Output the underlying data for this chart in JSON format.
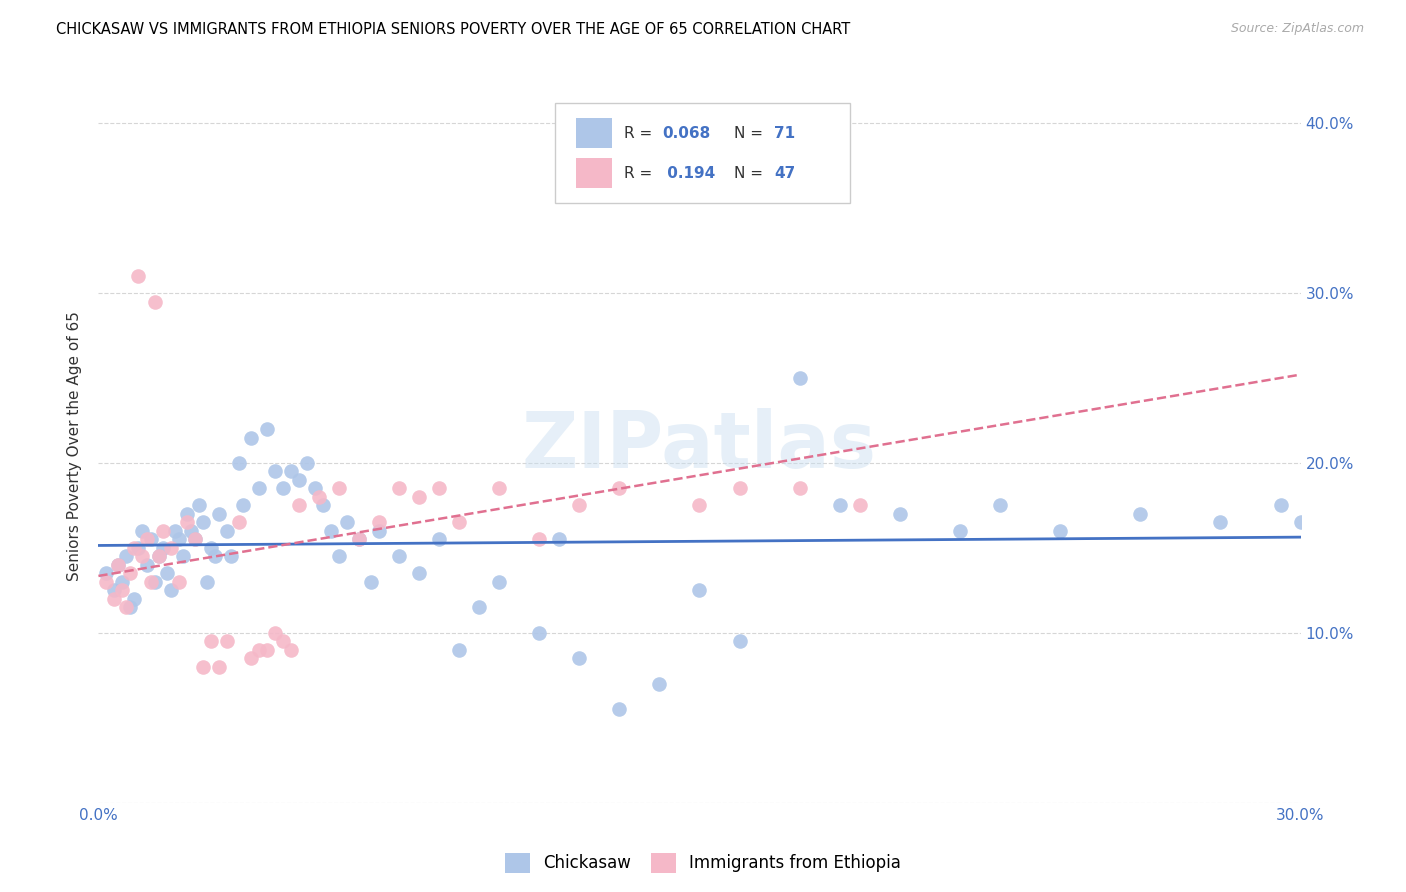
{
  "title": "CHICKASAW VS IMMIGRANTS FROM ETHIOPIA SENIORS POVERTY OVER THE AGE OF 65 CORRELATION CHART",
  "source": "Source: ZipAtlas.com",
  "ylabel": "Seniors Poverty Over the Age of 65",
  "xlim": [
    0.0,
    0.3
  ],
  "ylim": [
    0.0,
    0.42
  ],
  "xticks": [
    0.0,
    0.05,
    0.1,
    0.15,
    0.2,
    0.25,
    0.3
  ],
  "yticks": [
    0.0,
    0.1,
    0.2,
    0.3,
    0.4
  ],
  "right_ytick_labels": [
    "",
    "10.0%",
    "20.0%",
    "30.0%",
    "40.0%"
  ],
  "xtick_labels": [
    "0.0%",
    "",
    "",
    "",
    "",
    "",
    "30.0%"
  ],
  "legend_label1": "Chickasaw",
  "legend_label2": "Immigrants from Ethiopia",
  "color_blue": "#aec6e8",
  "color_pink": "#f5b8c8",
  "color_blue_text": "#4472c4",
  "line_blue": "#4472c4",
  "line_pink": "#e07090",
  "watermark": "ZIPatlas",
  "chickasaw_x": [
    0.002,
    0.004,
    0.005,
    0.006,
    0.007,
    0.008,
    0.009,
    0.01,
    0.011,
    0.012,
    0.013,
    0.014,
    0.015,
    0.016,
    0.017,
    0.018,
    0.019,
    0.02,
    0.021,
    0.022,
    0.023,
    0.024,
    0.025,
    0.026,
    0.027,
    0.028,
    0.029,
    0.03,
    0.032,
    0.033,
    0.035,
    0.036,
    0.038,
    0.04,
    0.042,
    0.044,
    0.046,
    0.048,
    0.05,
    0.052,
    0.054,
    0.056,
    0.058,
    0.06,
    0.062,
    0.065,
    0.068,
    0.07,
    0.075,
    0.08,
    0.085,
    0.09,
    0.095,
    0.1,
    0.11,
    0.115,
    0.12,
    0.13,
    0.14,
    0.15,
    0.16,
    0.175,
    0.185,
    0.2,
    0.215,
    0.225,
    0.24,
    0.26,
    0.28,
    0.295,
    0.3
  ],
  "chickasaw_y": [
    0.135,
    0.125,
    0.14,
    0.13,
    0.145,
    0.115,
    0.12,
    0.15,
    0.16,
    0.14,
    0.155,
    0.13,
    0.145,
    0.15,
    0.135,
    0.125,
    0.16,
    0.155,
    0.145,
    0.17,
    0.16,
    0.155,
    0.175,
    0.165,
    0.13,
    0.15,
    0.145,
    0.17,
    0.16,
    0.145,
    0.2,
    0.175,
    0.215,
    0.185,
    0.22,
    0.195,
    0.185,
    0.195,
    0.19,
    0.2,
    0.185,
    0.175,
    0.16,
    0.145,
    0.165,
    0.155,
    0.13,
    0.16,
    0.145,
    0.135,
    0.155,
    0.09,
    0.115,
    0.13,
    0.1,
    0.155,
    0.085,
    0.055,
    0.07,
    0.125,
    0.095,
    0.25,
    0.175,
    0.17,
    0.16,
    0.175,
    0.16,
    0.17,
    0.165,
    0.175,
    0.165
  ],
  "ethiopia_x": [
    0.002,
    0.004,
    0.005,
    0.006,
    0.007,
    0.008,
    0.009,
    0.01,
    0.011,
    0.012,
    0.013,
    0.014,
    0.015,
    0.016,
    0.018,
    0.02,
    0.022,
    0.024,
    0.026,
    0.028,
    0.03,
    0.032,
    0.035,
    0.038,
    0.04,
    0.042,
    0.044,
    0.046,
    0.048,
    0.05,
    0.055,
    0.06,
    0.065,
    0.07,
    0.075,
    0.08,
    0.085,
    0.09,
    0.1,
    0.11,
    0.12,
    0.13,
    0.14,
    0.15,
    0.16,
    0.175,
    0.19
  ],
  "ethiopia_y": [
    0.13,
    0.12,
    0.14,
    0.125,
    0.115,
    0.135,
    0.15,
    0.31,
    0.145,
    0.155,
    0.13,
    0.295,
    0.145,
    0.16,
    0.15,
    0.13,
    0.165,
    0.155,
    0.08,
    0.095,
    0.08,
    0.095,
    0.165,
    0.085,
    0.09,
    0.09,
    0.1,
    0.095,
    0.09,
    0.175,
    0.18,
    0.185,
    0.155,
    0.165,
    0.185,
    0.18,
    0.185,
    0.165,
    0.185,
    0.155,
    0.175,
    0.185,
    0.36,
    0.175,
    0.185,
    0.185,
    0.175
  ]
}
